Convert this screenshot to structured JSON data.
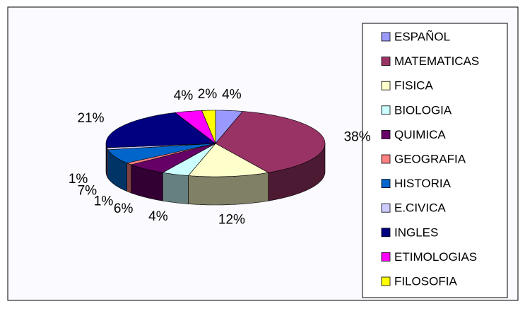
{
  "chart_data": {
    "type": "pie3d",
    "categories": [
      "ESPAÑOL",
      "MATEMATICAS",
      "FISICA",
      "BIOLOGIA",
      "QUIMICA",
      "GEOGRAFIA",
      "HISTORIA",
      "E.CIVICA",
      "INGLES",
      "ETIMOLOGIAS",
      "FILOSOFIA"
    ],
    "values": [
      4,
      38,
      12,
      4,
      6,
      1,
      7,
      1,
      21,
      4,
      2
    ],
    "value_labels": [
      "4%",
      "38%",
      "12%",
      "4%",
      "6%",
      "1%",
      "7%",
      "1%",
      "21%",
      "4%",
      "2%"
    ],
    "colors": [
      "#9999ff",
      "#993366",
      "#ffffcc",
      "#ccffff",
      "#660066",
      "#ff8080",
      "#0066cc",
      "#ccccff",
      "#000080",
      "#ff00ff",
      "#ffff00"
    ],
    "legend": "right"
  }
}
